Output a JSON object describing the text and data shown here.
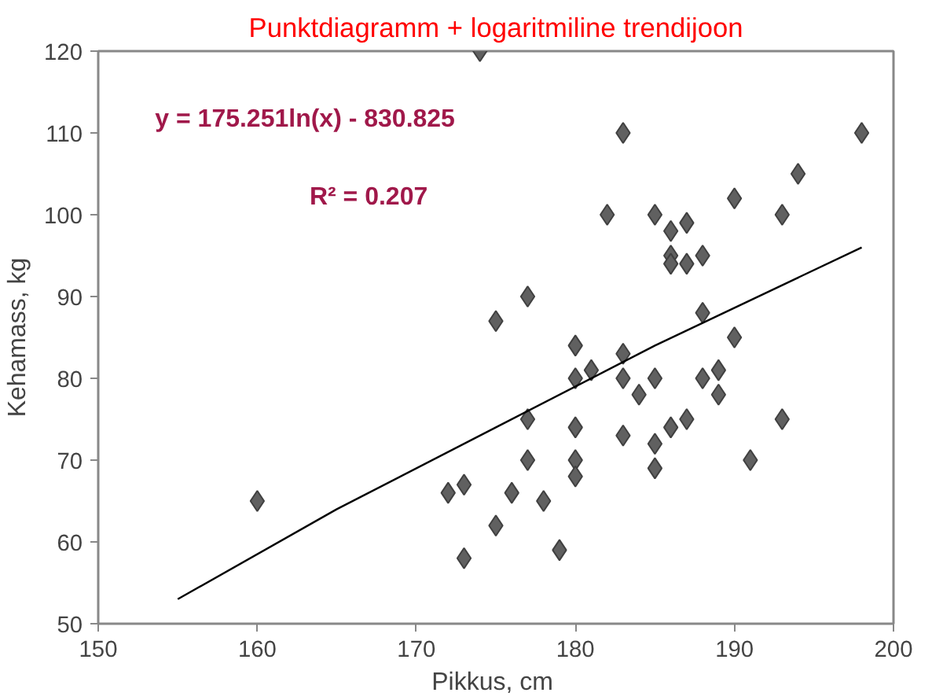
{
  "chart_data": {
    "type": "scatter",
    "title": "Punktdiagramm + logaritmiline trendijoon",
    "xlabel": "Pikkus,  cm",
    "ylabel": "Kehamass, kg",
    "xlim": [
      150,
      200
    ],
    "xticks": [
      150,
      160,
      170,
      180,
      190,
      200
    ],
    "ylim": [
      50,
      120
    ],
    "yticks": [
      50,
      60,
      70,
      80,
      90,
      100,
      110,
      120
    ],
    "grid": false,
    "series": [
      {
        "marker": "diamond",
        "color": "#606060",
        "x": [
          160,
          172,
          173,
          173,
          175,
          175,
          176,
          177,
          177,
          177,
          178,
          179,
          180,
          180,
          180,
          180,
          180,
          181,
          182,
          183,
          183,
          183,
          183,
          184,
          185,
          185,
          185,
          185,
          186,
          186,
          186,
          186,
          187,
          187,
          187,
          188,
          188,
          188,
          189,
          189,
          190,
          190,
          191,
          193,
          193,
          194,
          198,
          174
        ],
        "values": [
          65,
          66,
          67,
          58,
          87,
          62,
          66,
          90,
          75,
          70,
          65,
          59,
          84,
          80,
          74,
          70,
          68,
          81,
          100,
          110,
          83,
          80,
          73,
          78,
          100,
          80,
          72,
          69,
          95,
          94,
          98,
          74,
          99,
          94,
          75,
          95,
          88,
          80,
          81,
          78,
          102,
          85,
          70,
          100,
          75,
          105,
          110,
          120
        ]
      },
      {
        "type": "line",
        "marker": "none",
        "color": "#000000",
        "x": [
          155,
          165,
          175,
          185,
          198
        ],
        "values": [
          53,
          64,
          74,
          84,
          96
        ]
      }
    ],
    "annotations": [
      "y = 175.251ln(x) - 830.825",
      "R² = 0.207"
    ]
  }
}
